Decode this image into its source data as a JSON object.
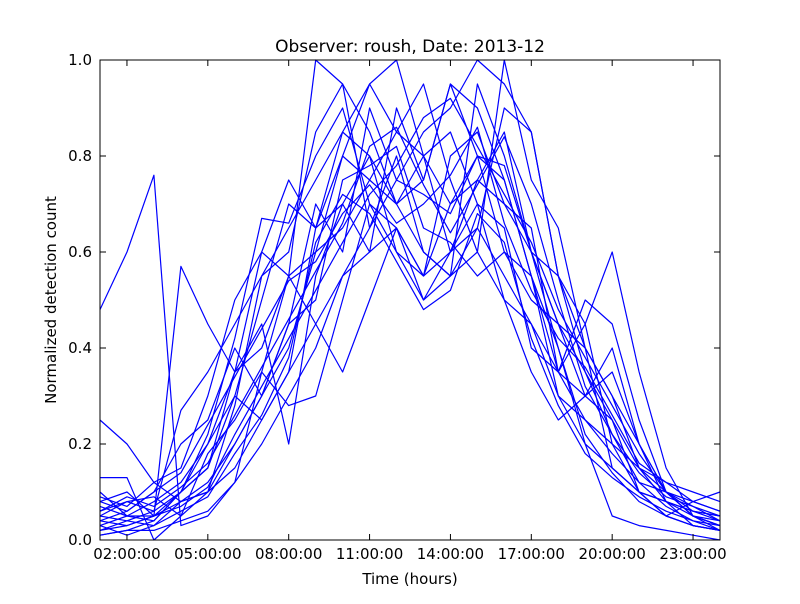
{
  "chart_data": {
    "type": "line",
    "title": "Observer: roush, Date: 2013-12",
    "xlabel": "Time (hours)",
    "ylabel": "Normalized detection count",
    "xlim": [
      "01:00:00",
      "24:00:00"
    ],
    "ylim": [
      0,
      1.0
    ],
    "x_ticks": [
      "02:00:00",
      "05:00:00",
      "08:00:00",
      "11:00:00",
      "14:00:00",
      "17:00:00",
      "20:00:00",
      "23:00:00"
    ],
    "y_ticks": [
      "0.0",
      "0.2",
      "0.4",
      "0.6",
      "0.8",
      "1.0"
    ],
    "grid": false,
    "legend": "none",
    "line_color": "#0000ff",
    "x": [
      "01:00:00",
      "02:00:00",
      "03:00:00",
      "04:00:00",
      "05:00:00",
      "06:00:00",
      "07:00:00",
      "08:00:00",
      "09:00:00",
      "10:00:00",
      "11:00:00",
      "12:00:00",
      "13:00:00",
      "14:00:00",
      "15:00:00",
      "16:00:00",
      "17:00:00",
      "18:00:00",
      "19:00:00",
      "20:00:00",
      "21:00:00",
      "22:00:00",
      "23:00:00",
      "24:00:00"
    ],
    "series": [
      {
        "values": [
          0.48,
          0.6,
          0.76,
          0.03,
          0.05,
          0.12,
          0.35,
          0.55,
          1.0,
          0.95,
          0.85,
          0.7,
          0.6,
          0.55,
          0.65,
          0.9,
          0.85,
          0.55,
          0.35,
          0.25,
          0.1,
          0.05,
          0.08,
          0.1
        ]
      },
      {
        "values": [
          0.25,
          0.2,
          0.12,
          0.08,
          0.1,
          0.28,
          0.55,
          0.6,
          0.85,
          0.95,
          0.65,
          0.8,
          0.6,
          0.55,
          0.6,
          1.0,
          0.75,
          0.65,
          0.4,
          0.3,
          0.15,
          0.08,
          0.05,
          0.02
        ]
      },
      {
        "values": [
          0.13,
          0.13,
          0.0,
          0.05,
          0.1,
          0.2,
          0.3,
          0.4,
          0.6,
          0.8,
          0.95,
          0.85,
          0.8,
          0.7,
          0.75,
          0.85,
          0.6,
          0.45,
          0.3,
          0.4,
          0.2,
          0.1,
          0.05,
          0.03
        ]
      },
      {
        "values": [
          0.05,
          0.08,
          0.06,
          0.27,
          0.35,
          0.45,
          0.55,
          0.65,
          0.75,
          0.85,
          0.95,
          1.0,
          0.8,
          0.6,
          0.7,
          0.65,
          0.4,
          0.35,
          0.5,
          0.45,
          0.25,
          0.1,
          0.05,
          0.04
        ]
      },
      {
        "values": [
          0.03,
          0.05,
          0.04,
          0.1,
          0.15,
          0.35,
          0.6,
          0.75,
          0.65,
          0.7,
          0.8,
          0.6,
          0.55,
          0.8,
          0.85,
          0.7,
          0.6,
          0.45,
          0.4,
          0.3,
          0.2,
          0.08,
          0.03,
          0.02
        ]
      },
      {
        "values": [
          0.08,
          0.1,
          0.05,
          0.57,
          0.45,
          0.35,
          0.45,
          0.2,
          0.55,
          0.7,
          0.6,
          0.9,
          0.75,
          0.95,
          0.8,
          0.6,
          0.55,
          0.35,
          0.45,
          0.6,
          0.35,
          0.15,
          0.05,
          0.03
        ]
      },
      {
        "values": [
          0.1,
          0.05,
          0.05,
          0.1,
          0.15,
          0.3,
          0.5,
          0.7,
          0.65,
          0.8,
          0.75,
          0.85,
          0.95,
          0.75,
          0.6,
          0.5,
          0.45,
          0.35,
          0.3,
          0.25,
          0.15,
          0.1,
          0.07,
          0.04
        ]
      },
      {
        "values": [
          0.02,
          0.03,
          0.05,
          0.08,
          0.1,
          0.15,
          0.25,
          0.35,
          0.45,
          0.55,
          0.6,
          0.65,
          0.55,
          0.7,
          0.8,
          0.75,
          0.55,
          0.4,
          0.2,
          0.05,
          0.03,
          0.02,
          0.01,
          0.0
        ]
      },
      {
        "values": [
          0.04,
          0.06,
          0.1,
          0.2,
          0.25,
          0.4,
          0.3,
          0.45,
          0.7,
          0.6,
          0.9,
          0.75,
          0.85,
          0.9,
          1.0,
          0.95,
          0.85,
          0.55,
          0.4,
          0.15,
          0.1,
          0.08,
          0.06,
          0.05
        ]
      },
      {
        "values": [
          0.06,
          0.08,
          0.09,
          0.05,
          0.18,
          0.25,
          0.35,
          0.28,
          0.3,
          0.5,
          0.7,
          0.65,
          0.5,
          0.6,
          0.75,
          0.7,
          0.65,
          0.35,
          0.25,
          0.18,
          0.12,
          0.1,
          0.08,
          0.06
        ]
      },
      {
        "values": [
          0.01,
          0.02,
          0.04,
          0.1,
          0.2,
          0.35,
          0.4,
          0.55,
          0.6,
          0.65,
          0.75,
          0.7,
          0.8,
          0.85,
          0.7,
          0.5,
          0.35,
          0.25,
          0.3,
          0.35,
          0.2,
          0.1,
          0.05,
          0.03
        ]
      },
      {
        "values": [
          0.09,
          0.07,
          0.12,
          0.15,
          0.3,
          0.5,
          0.6,
          0.55,
          0.45,
          0.35,
          0.5,
          0.65,
          0.55,
          0.6,
          0.65,
          0.55,
          0.45,
          0.3,
          0.2,
          0.15,
          0.1,
          0.08,
          0.06,
          0.05
        ]
      },
      {
        "values": [
          0.05,
          0.04,
          0.06,
          0.1,
          0.22,
          0.42,
          0.67,
          0.66,
          0.8,
          0.9,
          0.7,
          0.6,
          0.5,
          0.55,
          0.95,
          0.8,
          0.6,
          0.55,
          0.45,
          0.2,
          0.1,
          0.05,
          0.03,
          0.02
        ]
      },
      {
        "values": [
          0.03,
          0.01,
          0.03,
          0.08,
          0.12,
          0.2,
          0.3,
          0.45,
          0.5,
          0.75,
          0.78,
          0.82,
          0.65,
          0.62,
          0.55,
          0.6,
          0.5,
          0.45,
          0.35,
          0.22,
          0.12,
          0.07,
          0.04,
          0.02
        ]
      },
      {
        "values": [
          0.07,
          0.05,
          0.08,
          0.12,
          0.2,
          0.3,
          0.25,
          0.35,
          0.65,
          0.85,
          0.8,
          0.7,
          0.75,
          0.95,
          0.9,
          0.75,
          0.55,
          0.3,
          0.25,
          0.2,
          0.15,
          0.12,
          0.1,
          0.08
        ]
      },
      {
        "values": [
          0.02,
          0.04,
          0.03,
          0.06,
          0.09,
          0.18,
          0.26,
          0.38,
          0.62,
          0.72,
          0.68,
          0.58,
          0.48,
          0.52,
          0.68,
          0.62,
          0.42,
          0.28,
          0.18,
          0.13,
          0.09,
          0.06,
          0.04,
          0.03
        ]
      },
      {
        "values": [
          0.04,
          0.03,
          0.05,
          0.07,
          0.11,
          0.22,
          0.32,
          0.42,
          0.52,
          0.62,
          0.72,
          0.78,
          0.88,
          0.92,
          0.82,
          0.72,
          0.62,
          0.48,
          0.38,
          0.28,
          0.18,
          0.1,
          0.06,
          0.04
        ]
      },
      {
        "values": [
          0.08,
          0.06,
          0.1,
          0.14,
          0.24,
          0.34,
          0.44,
          0.54,
          0.58,
          0.68,
          0.74,
          0.66,
          0.7,
          0.76,
          0.86,
          0.66,
          0.52,
          0.42,
          0.36,
          0.26,
          0.16,
          0.12,
          0.08,
          0.06
        ]
      },
      {
        "values": [
          0.01,
          0.02,
          0.02,
          0.04,
          0.06,
          0.12,
          0.2,
          0.3,
          0.4,
          0.55,
          0.65,
          0.75,
          0.72,
          0.68,
          0.8,
          0.78,
          0.6,
          0.4,
          0.22,
          0.14,
          0.08,
          0.05,
          0.03,
          0.02
        ]
      },
      {
        "values": [
          0.06,
          0.09,
          0.07,
          0.11,
          0.16,
          0.26,
          0.36,
          0.46,
          0.56,
          0.66,
          0.82,
          0.86,
          0.74,
          0.64,
          0.74,
          0.84,
          0.7,
          0.5,
          0.32,
          0.22,
          0.14,
          0.09,
          0.07,
          0.05
        ]
      }
    ]
  }
}
